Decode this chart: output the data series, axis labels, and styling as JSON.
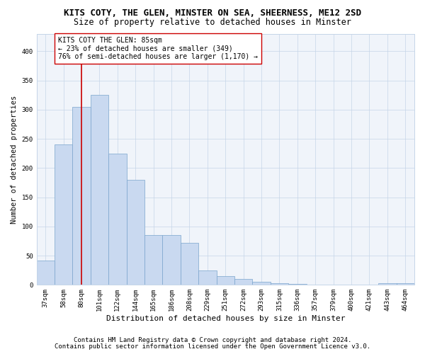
{
  "title1": "KITS COTY, THE GLEN, MINSTER ON SEA, SHEERNESS, ME12 2SD",
  "title2": "Size of property relative to detached houses in Minster",
  "xlabel": "Distribution of detached houses by size in Minster",
  "ylabel": "Number of detached properties",
  "categories": [
    "37sqm",
    "58sqm",
    "80sqm",
    "101sqm",
    "122sqm",
    "144sqm",
    "165sqm",
    "186sqm",
    "208sqm",
    "229sqm",
    "251sqm",
    "272sqm",
    "293sqm",
    "315sqm",
    "336sqm",
    "357sqm",
    "379sqm",
    "400sqm",
    "421sqm",
    "443sqm",
    "464sqm"
  ],
  "values": [
    42,
    240,
    305,
    325,
    225,
    180,
    85,
    85,
    72,
    25,
    15,
    10,
    5,
    3,
    2,
    1,
    1,
    0,
    0,
    3,
    3
  ],
  "bar_color": "#c9d9f0",
  "bar_edge_color": "#7aa4cc",
  "vline_x_index": 2,
  "vline_color": "#cc0000",
  "annotation_text": "KITS COTY THE GLEN: 85sqm\n← 23% of detached houses are smaller (349)\n76% of semi-detached houses are larger (1,170) →",
  "annotation_box_color": "#ffffff",
  "annotation_box_edge": "#cc0000",
  "ylim": [
    0,
    430
  ],
  "yticks": [
    0,
    50,
    100,
    150,
    200,
    250,
    300,
    350,
    400
  ],
  "footer1": "Contains HM Land Registry data © Crown copyright and database right 2024.",
  "footer2": "Contains public sector information licensed under the Open Government Licence v3.0.",
  "title_fontsize": 9,
  "subtitle_fontsize": 8.5,
  "xlabel_fontsize": 8,
  "ylabel_fontsize": 7.5,
  "tick_fontsize": 6.5,
  "annotation_fontsize": 7,
  "footer_fontsize": 6.5,
  "bg_color": "#f0f4fa"
}
